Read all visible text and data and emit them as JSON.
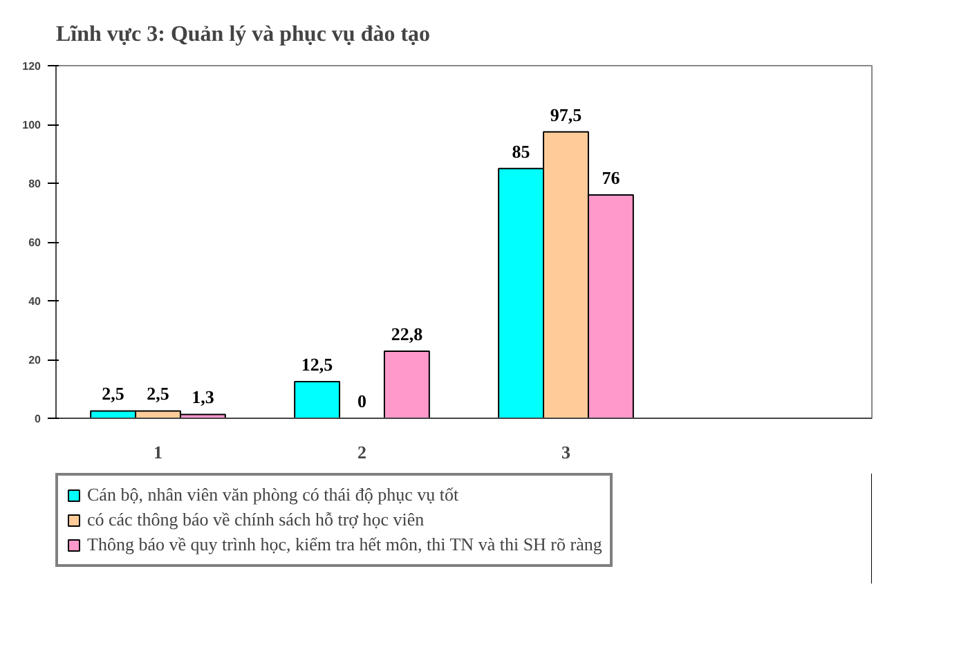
{
  "chart_data": {
    "type": "bar",
    "title": "Lĩnh vực 3: Quản lý và phục vụ đào tạo",
    "categories": [
      "1",
      "2",
      "3",
      null
    ],
    "series": [
      {
        "name": "Cán bộ, nhân viên văn phòng có thái độ phục vụ tốt",
        "color": "#00ffff",
        "values": [
          2.5,
          12.5,
          85,
          null
        ],
        "value_labels": [
          "2,5",
          "12,5",
          "85",
          null
        ]
      },
      {
        "name": "có các thông báo về chính sách hỗ trợ học viên",
        "color": "#ffcc99",
        "values": [
          2.5,
          0,
          97.5,
          null
        ],
        "value_labels": [
          "2,5",
          "0",
          "97,5",
          null
        ]
      },
      {
        "name": "Thông báo về quy trình học, kiểm tra hết môn, thi TN và thi SH rõ ràng",
        "color": "#ff99cc",
        "values": [
          1.3,
          22.8,
          76,
          null
        ],
        "value_labels": [
          "1,3",
          "22,8",
          "76",
          null
        ]
      }
    ],
    "ylim": [
      0,
      120
    ],
    "yticks": [
      0,
      20,
      40,
      60,
      80,
      100,
      120
    ],
    "grid": false,
    "legend": "bottom"
  }
}
